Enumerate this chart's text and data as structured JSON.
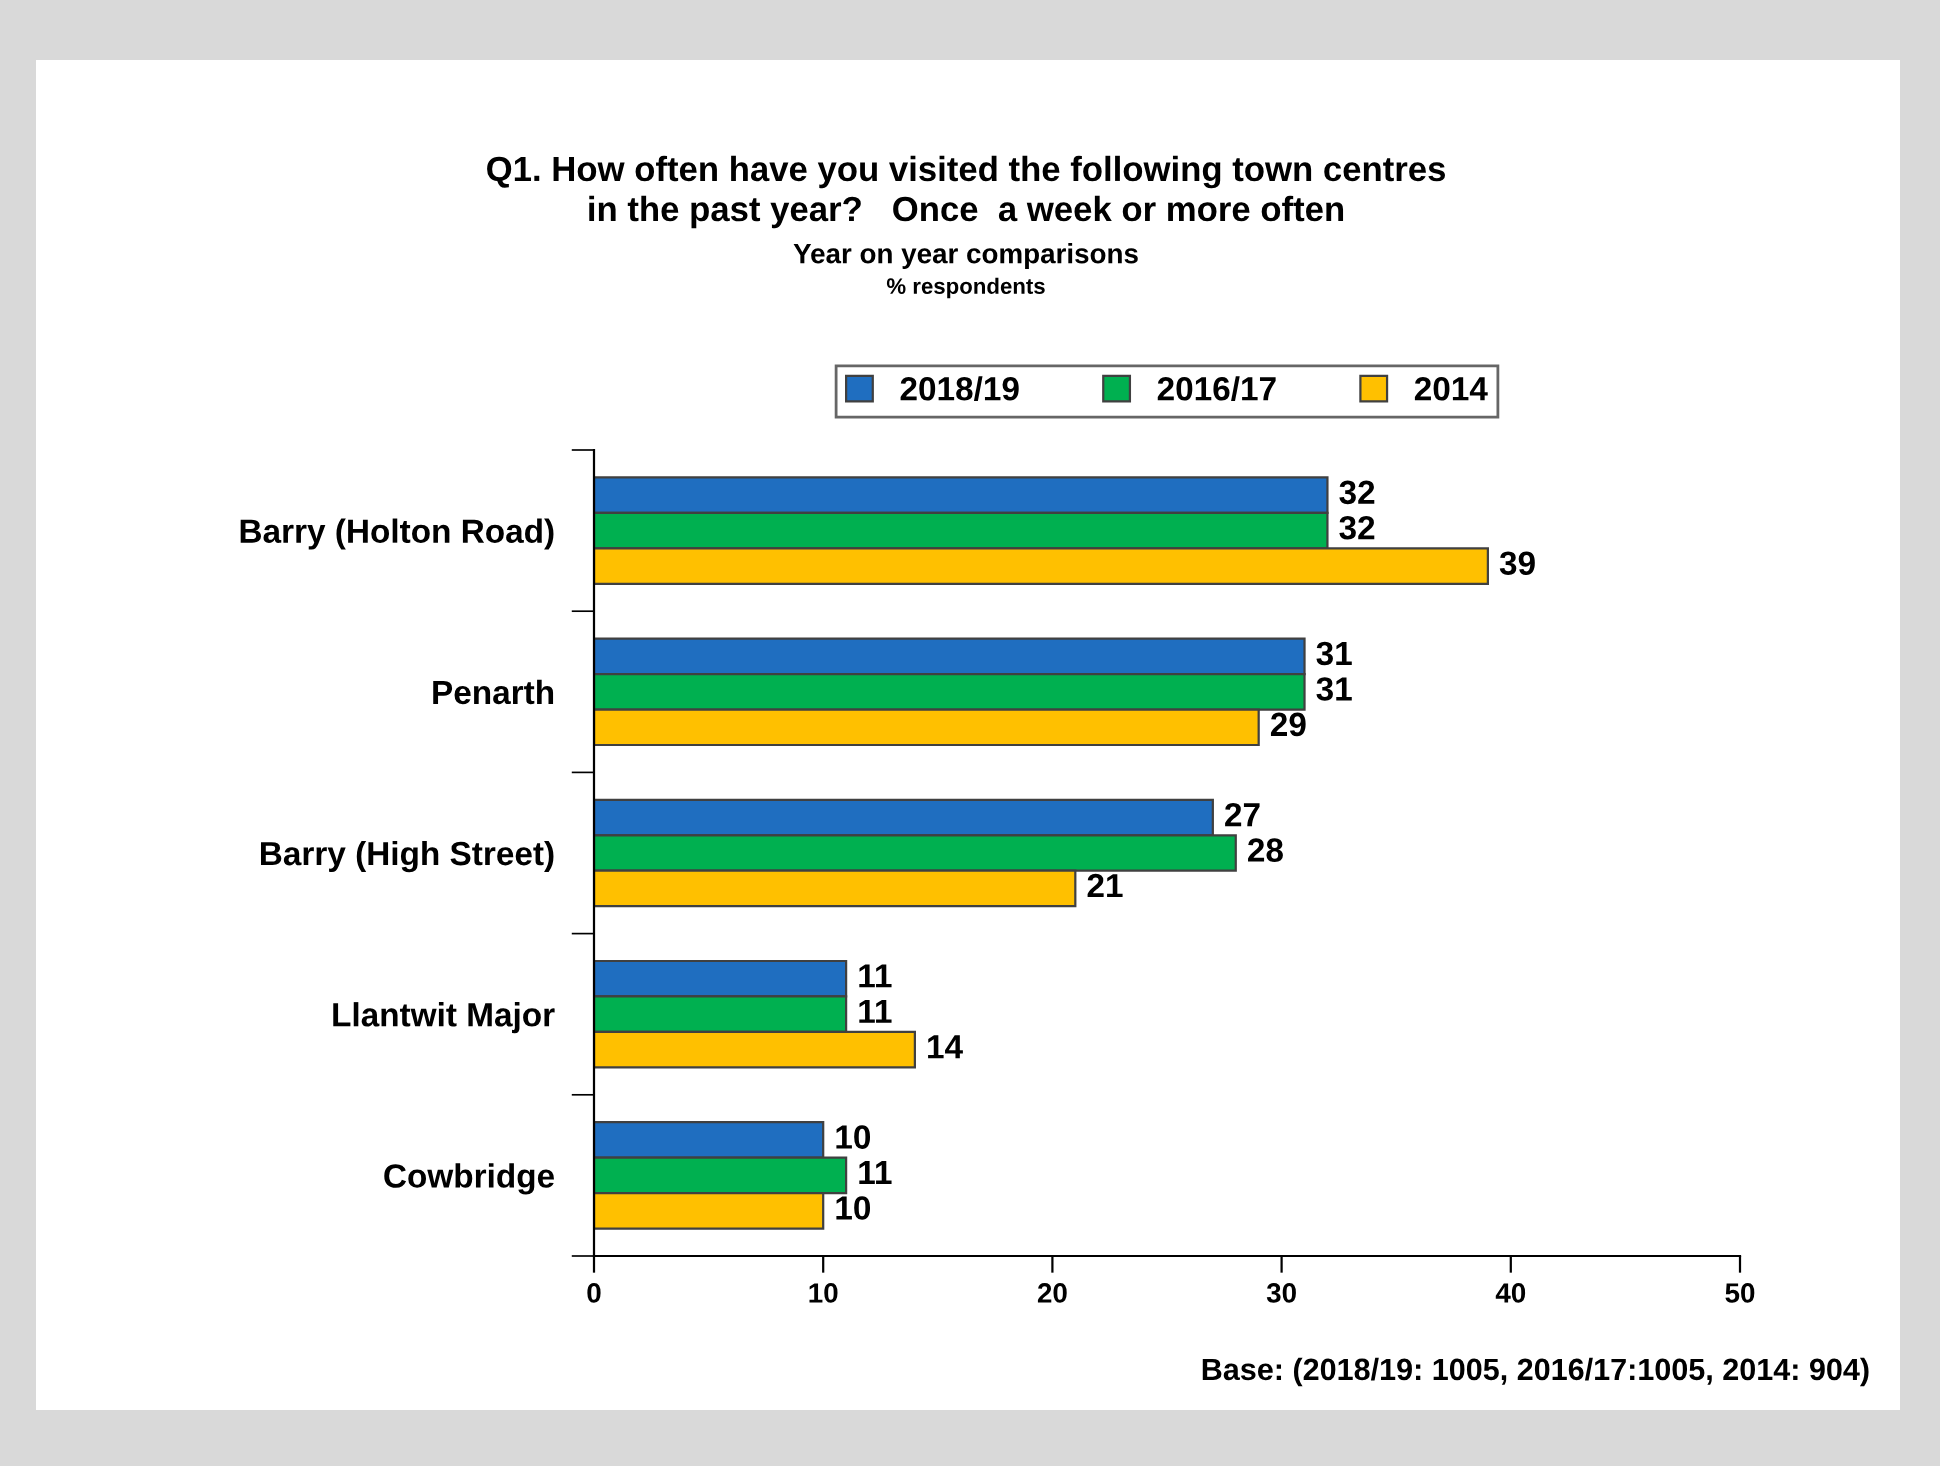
{
  "chart_data": {
    "type": "bar",
    "orientation": "horizontal",
    "title": "Q1. How often have you visited the following town centres\nin the past year?   Once  a week or more often",
    "subtitle": "Year on year comparisons",
    "annotations": [
      "% respondents",
      "Base: (2018/19: 1005, 2016/17:1005, 2014: 904)"
    ],
    "categories": [
      "Barry (Holton Road)",
      "Penarth",
      "Barry (High Street)",
      "Llantwit Major",
      "Cowbridge"
    ],
    "series": [
      {
        "name": "2018/19",
        "color": "#1f6ec0",
        "values": [
          32,
          31,
          27,
          11,
          10
        ]
      },
      {
        "name": "2016/17",
        "color": "#00b050",
        "values": [
          32,
          31,
          28,
          11,
          11
        ]
      },
      {
        "name": "2014",
        "color": "#ffc000",
        "values": [
          39,
          29,
          21,
          14,
          10
        ]
      }
    ],
    "xlim": [
      0,
      50
    ],
    "xticks": [
      0,
      10,
      20,
      30,
      40,
      50
    ],
    "data_labels": true,
    "legend": "top",
    "grid": false
  }
}
